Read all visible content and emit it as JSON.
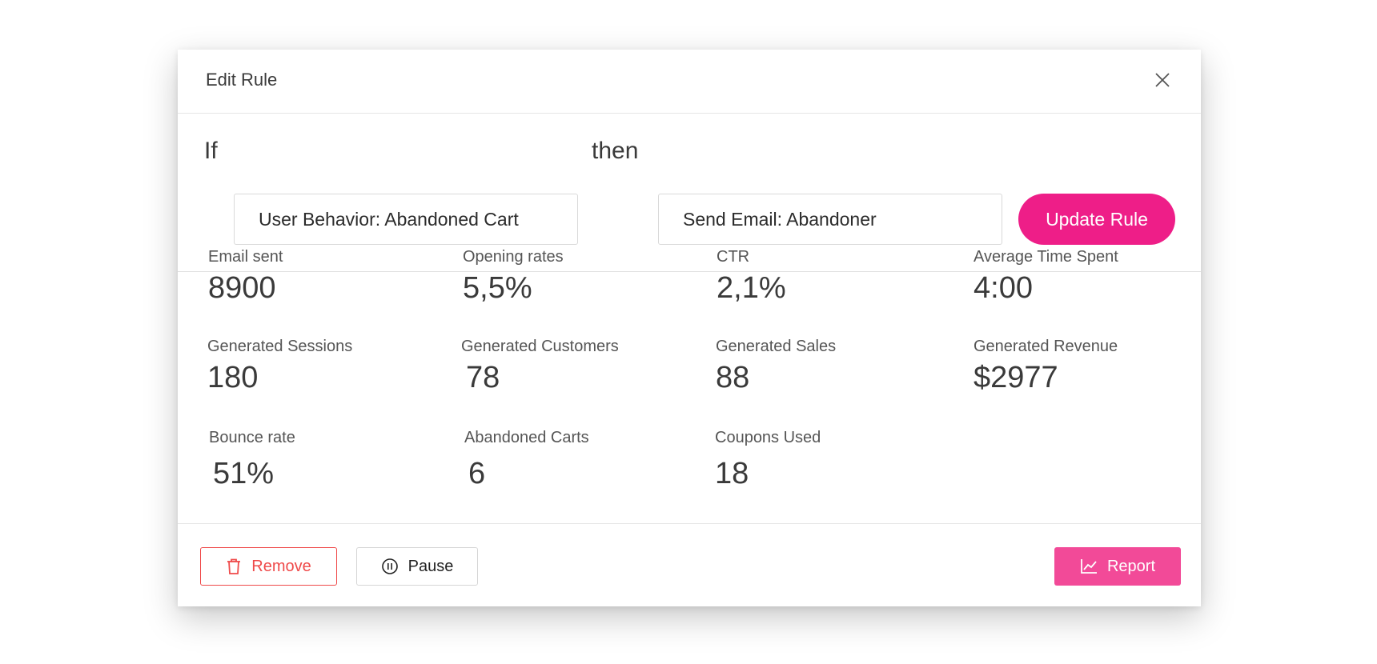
{
  "modal": {
    "title": "Edit Rule"
  },
  "rule": {
    "if_keyword": "If",
    "condition_value": "User Behavior: Abandoned Cart",
    "then_keyword": "then",
    "action_value": "Send Email: Abandoner",
    "update_label": "Update Rule"
  },
  "stats": [
    {
      "label": "Email sent",
      "value": "8900"
    },
    {
      "label": "Opening rates",
      "value": "5,5%"
    },
    {
      "label": "CTR",
      "value": "2,1%"
    },
    {
      "label": "Average Time Spent",
      "value": "4:00"
    },
    {
      "label": "Generated Sessions",
      "value": "180"
    },
    {
      "label": "Generated Customers",
      "value": "78"
    },
    {
      "label": "Generated Sales",
      "value": "88"
    },
    {
      "label": "Generated Revenue",
      "value": "$2977"
    },
    {
      "label": "Bounce rate",
      "value": "51%"
    },
    {
      "label": "Abandoned Carts",
      "value": "6"
    },
    {
      "label": "Coupons Used",
      "value": "18"
    }
  ],
  "footer": {
    "remove_label": "Remove",
    "pause_label": "Pause",
    "report_label": "Report"
  },
  "icons": {
    "close": "close-icon",
    "remove": "trash-icon",
    "pause": "pause-circle-icon",
    "report": "line-chart-icon"
  },
  "colors": {
    "accent": "#ee1e88",
    "report": "#f24a98",
    "danger": "#ef4a4a"
  }
}
